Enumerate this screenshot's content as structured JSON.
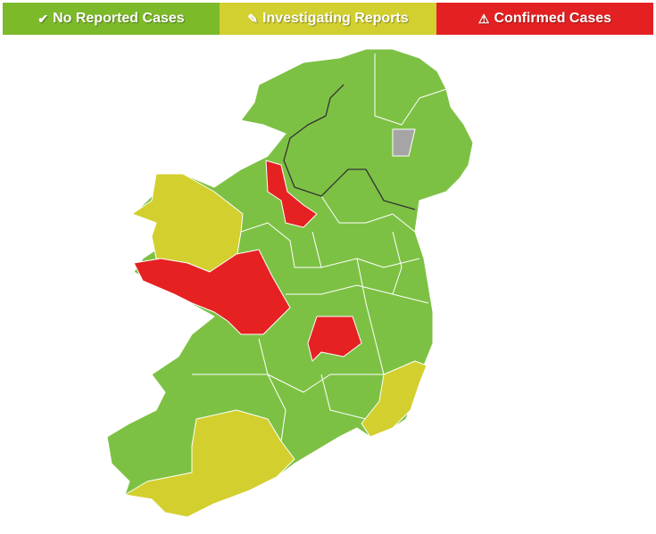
{
  "legend": [
    {
      "label": "No Reported Cases",
      "icon": "check-icon",
      "glyph": "✔",
      "color": "#7dba2a"
    },
    {
      "label": "Investigating Reports",
      "icon": "edit-icon",
      "glyph": "✎",
      "color": "#d2d030"
    },
    {
      "label": "Confirmed Cases",
      "icon": "warning-icon",
      "glyph": "⚠",
      "color": "#e42122"
    }
  ],
  "map": {
    "colors": {
      "no_cases": "#7dc144",
      "investigating": "#d3cf2f",
      "confirmed": "#e52122",
      "no_data": "#a5a5a5",
      "border": "#333333"
    },
    "regions": [
      {
        "status": "no_cases"
      },
      {
        "status": "investigating"
      },
      {
        "status": "confirmed"
      },
      {
        "status": "confirmed"
      },
      {
        "status": "confirmed"
      },
      {
        "status": "investigating"
      },
      {
        "status": "investigating"
      },
      {
        "status": "no_data"
      }
    ]
  }
}
